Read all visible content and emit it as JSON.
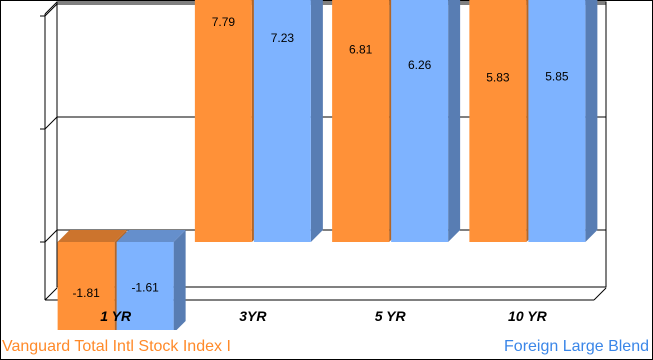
{
  "chart_data": {
    "type": "bar",
    "categories": [
      "1 YR",
      "3YR",
      "5 YR",
      "10 YR"
    ],
    "series": [
      {
        "name": "Vanguard Total Intl Stock Index I",
        "color": "#FF9138",
        "values": [
          -1.81,
          7.79,
          6.81,
          5.83
        ]
      },
      {
        "name": "Foreign Large Blend",
        "color": "#7EB3FF",
        "values": [
          -1.61,
          7.23,
          6.26,
          5.85
        ]
      }
    ],
    "ylim": [
      -2,
      8
    ],
    "grid": true,
    "legend_placement": "bottom",
    "style": "3d"
  }
}
